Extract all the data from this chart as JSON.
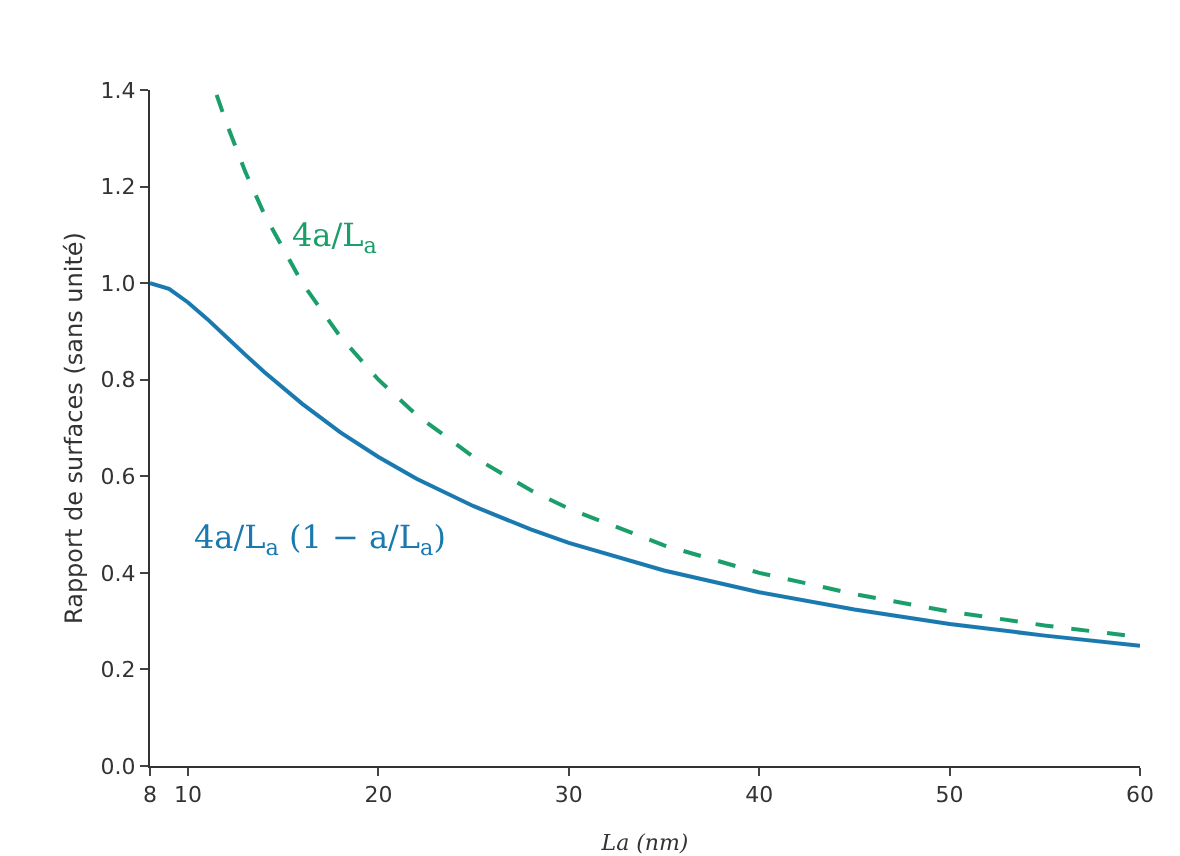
{
  "chart_data": {
    "type": "line",
    "xlabel": "La (nm)",
    "ylabel": "Rapport de surfaces (sans unité)",
    "xlim": [
      8,
      60
    ],
    "ylim": [
      0,
      1.4
    ],
    "xticks": [
      8,
      10,
      20,
      30,
      40,
      50,
      60
    ],
    "yticks": [
      {
        "value": 0,
        "label": "0.0"
      },
      {
        "value": 0.2,
        "label": "0.2"
      },
      {
        "value": 0.4,
        "label": "0.4"
      },
      {
        "value": 0.6,
        "label": "0.6"
      },
      {
        "value": 0.8,
        "label": "0.8"
      },
      {
        "value": 1.0,
        "label": "1.0"
      },
      {
        "value": 1.2,
        "label": "1.2"
      },
      {
        "value": 1.4,
        "label": "1.4"
      }
    ],
    "grid": false,
    "legend": false,
    "marker": "none",
    "series": [
      {
        "name": "4a/L$_{a}$ (1 − a/L$_{a}$)",
        "color": "#1a7ab0",
        "line_style": "solid",
        "x": [
          8,
          9,
          10,
          11,
          12,
          13,
          14,
          16,
          18,
          20,
          22,
          25,
          28,
          30,
          35,
          40,
          45,
          50,
          55,
          60
        ],
        "values": [
          1,
          0.988,
          0.96,
          0.926,
          0.889,
          0.852,
          0.816,
          0.75,
          0.691,
          0.64,
          0.595,
          0.538,
          0.49,
          0.462,
          0.405,
          0.36,
          0.324,
          0.294,
          0.27,
          0.249
        ]
      },
      {
        "name": "4a/L$_{a}$",
        "color": "#1a9e6a",
        "line_style": "dashed",
        "x": [
          11.5,
          12,
          13,
          14,
          16,
          18,
          20,
          22,
          25,
          28,
          30,
          35,
          40,
          45,
          50,
          55,
          60
        ],
        "values": [
          1.39,
          1.333,
          1.231,
          1.143,
          1,
          0.889,
          0.8,
          0.727,
          0.64,
          0.571,
          0.533,
          0.457,
          0.4,
          0.356,
          0.32,
          0.291,
          0.267
        ]
      }
    ]
  }
}
